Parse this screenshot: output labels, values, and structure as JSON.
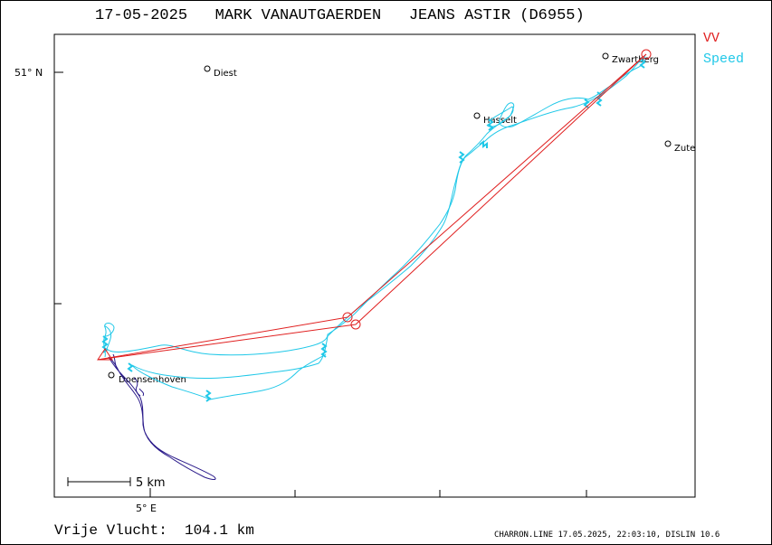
{
  "header": {
    "title": "17-05-2025   MARK VANAUTGAERDEN   JEANS ASTIR (D6955)"
  },
  "legend": [
    {
      "label": "VV",
      "color": "#e02020"
    },
    {
      "label": "Speed",
      "color": "#20c8e8"
    }
  ],
  "axes": {
    "lat_label": "51° N",
    "lon_label": "5° E"
  },
  "towns": [
    {
      "name": "Diest"
    },
    {
      "name": "Zwartberg"
    },
    {
      "name": "Hasselt"
    },
    {
      "name": "Zute"
    },
    {
      "name": "Doensenhoven"
    }
  ],
  "scale_bar": {
    "label": "5 km"
  },
  "footer": {
    "distance_text": "Vrije Vlucht:  104.1 km",
    "credits": "CHARRON.LINE 17.05.2025, 22:03:10, DISLIN 10.6"
  },
  "colors": {
    "task": "#e02020",
    "track_speed": "#20c8e8",
    "track_low": "#2a1a8a"
  }
}
